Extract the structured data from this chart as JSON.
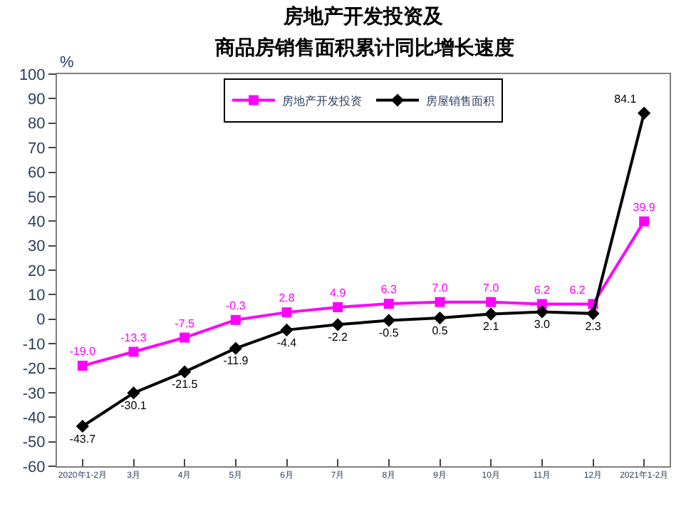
{
  "chart_data": {
    "type": "line",
    "title": "房地产开发投资及",
    "subtitle": "商品房销售面积累计同比增长速度",
    "ylabel": "%",
    "categories": [
      "2020年1-2月",
      "3月",
      "4月",
      "5月",
      "6月",
      "7月",
      "8月",
      "9月",
      "10月",
      "11月",
      "12月",
      "2021年1-2月"
    ],
    "series": [
      {
        "name": "房地产开发投资",
        "color": "#ff00ff",
        "marker": "square",
        "values": [
          -19.0,
          -13.3,
          -7.5,
          -0.3,
          2.8,
          4.9,
          6.3,
          7.0,
          7.0,
          6.2,
          6.2,
          39.9
        ],
        "value_labels": [
          "-19.0",
          "-13.3",
          "-7.5",
          "-0.3",
          "2.8",
          "4.9",
          "6.3",
          "7.0",
          "7.0",
          "6.2",
          "6.2",
          "39.9"
        ]
      },
      {
        "name": "房屋销售面积",
        "color": "#000000",
        "marker": "diamond",
        "values": [
          -43.7,
          -30.1,
          -21.5,
          -11.9,
          -4.4,
          -2.2,
          -0.5,
          0.5,
          2.1,
          3.0,
          2.3,
          84.1
        ],
        "value_labels": [
          "-43.7",
          "-30.1",
          "-21.5",
          "-11.9",
          "-4.4",
          "-2.2",
          "-0.5",
          "0.5",
          "2.1",
          "3.0",
          "2.3",
          "84.1"
        ]
      }
    ],
    "ylim": [
      -60,
      100
    ],
    "yticks": [
      -60,
      -50,
      -40,
      -30,
      -20,
      -10,
      0,
      10,
      20,
      30,
      40,
      50,
      60,
      70,
      80,
      90,
      100
    ],
    "legend": "top"
  }
}
